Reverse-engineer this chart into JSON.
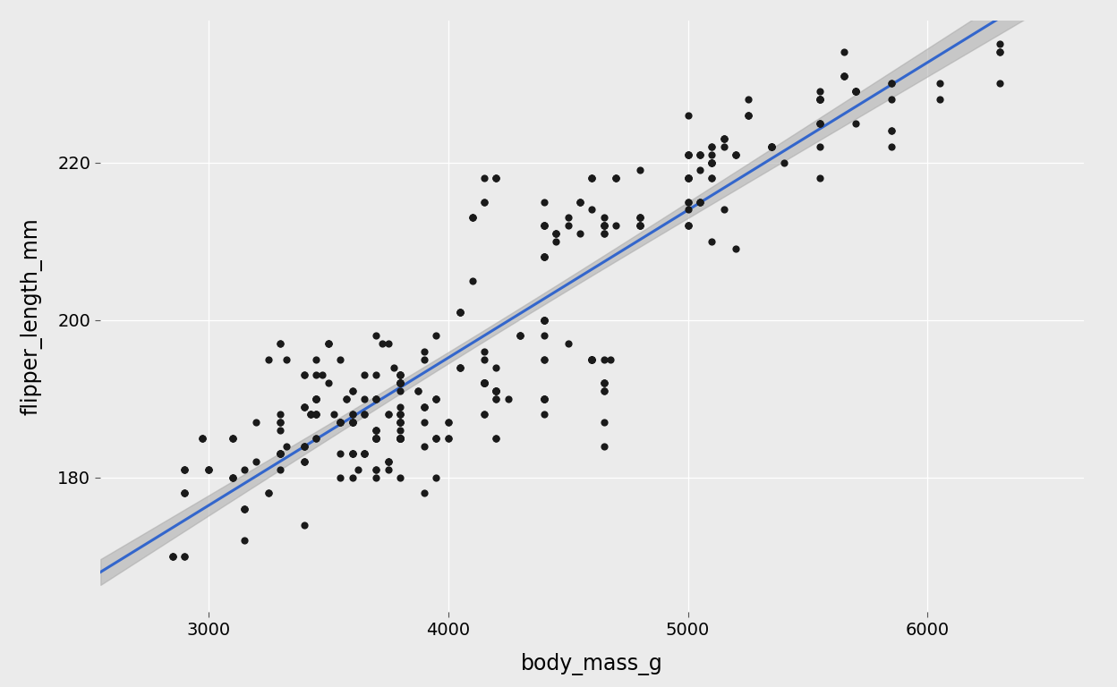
{
  "xlabel": "body_mass_g",
  "ylabel": "flipper_length_mm",
  "xlim": [
    2550,
    6650
  ],
  "ylim": [
    163,
    238
  ],
  "xticks": [
    3000,
    4000,
    5000,
    6000
  ],
  "yticks": [
    180,
    200,
    220
  ],
  "bg_color": "#EBEBEB",
  "grid_color": "#FFFFFF",
  "point_color": "#1a1a1a",
  "line_color": "#3366CC",
  "se_color": "#AAAAAA",
  "point_size": 35,
  "line_width": 2.2,
  "xlabel_fontsize": 17,
  "ylabel_fontsize": 17,
  "tick_fontsize": 14,
  "body_mass": [
    3750,
    3800,
    3250,
    3450,
    3650,
    3625,
    4675,
    3475,
    4250,
    3300,
    3700,
    3200,
    3800,
    4400,
    3700,
    3450,
    4500,
    3325,
    4200,
    3400,
    3600,
    3800,
    3950,
    3800,
    3800,
    3550,
    3200,
    3150,
    3950,
    3250,
    3900,
    3300,
    3900,
    3325,
    4150,
    3950,
    3550,
    3300,
    4650,
    3150,
    3900,
    3100,
    4400,
    3000,
    4600,
    3425,
    2975,
    3450,
    4150,
    3500,
    4300,
    3450,
    4050,
    2900,
    3700,
    3550,
    3800,
    2850,
    3750,
    3150,
    4400,
    3600,
    3900,
    3100,
    4200,
    3400,
    3800,
    3700,
    3800,
    3700,
    4650,
    3400,
    3600,
    3400,
    2900,
    3800,
    3300,
    4150,
    4400,
    4600,
    3800,
    4200,
    3800,
    3600,
    3900,
    4150,
    3950,
    3800,
    4000,
    3875,
    3800,
    3650,
    4000,
    3600,
    4200,
    3800,
    3950,
    4650,
    3450,
    3650,
    3550,
    3650,
    4400,
    3800,
    4200,
    3600,
    3700,
    3300,
    4650,
    3750,
    3700,
    4050,
    3575,
    4050,
    3300,
    3700,
    3450,
    4400,
    3600,
    3400,
    2900,
    3800,
    3300,
    4150,
    3100,
    4400,
    3000,
    4600,
    3425,
    2975,
    3450,
    4150,
    3500,
    4300,
    3450,
    4050,
    2900,
    3700,
    3550,
    3800,
    2850,
    3750,
    3150,
    4400,
    3600,
    3900,
    3100,
    4200,
    3400,
    3800,
    3700,
    3800,
    3700,
    4650,
    3400,
    3600,
    3400,
    2900,
    3800,
    3300,
    4150,
    4400,
    4600,
    3800,
    4200,
    3800,
    3500,
    3900,
    3650,
    3525,
    3725,
    3950,
    3250,
    3750,
    4150,
    3700,
    3800,
    3775,
    3700,
    4050,
    3575,
    4050,
    3300,
    3700,
    3450,
    4400,
    3600,
    3400,
    2900,
    3800,
    3300,
    4150,
    3100,
    4400,
    3000,
    4600,
    3425,
    2975,
    3450,
    4150,
    3500,
    4300,
    3450,
    4050,
    2900,
    3700,
    3550,
    3800,
    2850,
    3750,
    3150,
    4400,
    3600,
    3900,
    3100,
    4200,
    3400,
    3800,
    3700,
    3800,
    3700,
    4650,
    3400,
    3600,
    3400,
    2900,
    3800,
    3300,
    4150,
    4400,
    4600,
    3800,
    4200,
    3800,
    4150,
    3950,
    3800,
    4000,
    3875,
    3800,
    3650,
    4000,
    3600,
    4200,
    3800,
    3950,
    4650,
    3450,
    3650,
    3550,
    3650,
    4400,
    3800,
    4200,
    3600,
    3700,
    3300,
    4650,
    3750,
    5700,
    5400,
    4450,
    5550,
    5000,
    5100,
    4550,
    4800,
    5200,
    4400,
    5150,
    4650,
    5550,
    4650,
    5850,
    4200,
    5850,
    4150,
    6300,
    4800,
    5350,
    5700,
    5000,
    4400,
    5050,
    5000,
    5100,
    4100,
    5650,
    4600,
    5550,
    5250,
    5000,
    4700,
    5100,
    4500,
    5050,
    4450,
    5550,
    5000,
    5100,
    4550,
    4800,
    5200,
    4400,
    5150,
    4650,
    5550,
    4650,
    5850,
    4200,
    5850,
    4150,
    6300,
    4800,
    5350,
    5700,
    5000,
    4400,
    5050,
    5000,
    5100,
    4100,
    5650,
    4600,
    5550,
    5250,
    5000,
    4700,
    5100,
    4500,
    5050,
    4450,
    5550,
    5000,
    5100,
    4550,
    4800,
    5200,
    4400,
    5150,
    4650,
    5550,
    4200,
    5850,
    4800,
    5350,
    5700,
    5000,
    4400,
    5050,
    5000,
    5100,
    4100,
    5650,
    4600,
    5250,
    5000,
    4700,
    5050,
    4450,
    5550,
    5000,
    4550,
    4800,
    5200,
    4400,
    5150,
    4650,
    5550,
    4650,
    5850,
    4150,
    6300,
    4800,
    5350,
    5700,
    5000,
    4400,
    6050,
    6300,
    6050,
    5150,
    5350,
    5700,
    5000,
    4400,
    5050,
    5100,
    4100,
    5650,
    4600,
    5550,
    5250,
    5000,
    4700,
    5100
  ],
  "flipper_length": [
    181,
    186,
    195,
    193,
    190,
    181,
    195,
    193,
    190,
    186,
    180,
    182,
    191,
    198,
    185,
    195,
    197,
    184,
    194,
    174,
    180,
    189,
    185,
    180,
    187,
    183,
    187,
    172,
    180,
    178,
    178,
    188,
    184,
    195,
    196,
    190,
    180,
    181,
    184,
    181,
    195,
    180,
    188,
    181,
    195,
    188,
    185,
    188,
    192,
    197,
    198,
    190,
    194,
    181,
    185,
    187,
    193,
    170,
    182,
    176,
    200,
    187,
    189,
    185,
    191,
    189,
    187,
    186,
    188,
    190,
    192,
    182,
    183,
    184,
    178,
    185,
    183,
    192,
    190,
    195,
    185,
    191,
    185,
    183,
    187,
    188,
    190,
    192,
    185,
    191,
    185,
    183,
    187,
    188,
    190,
    192,
    185,
    191,
    185,
    183,
    187,
    188,
    190,
    192,
    185,
    191,
    185,
    183,
    195,
    188,
    193,
    201,
    190,
    201,
    197,
    181,
    190,
    195,
    187,
    193,
    170,
    185,
    187,
    192,
    180,
    200,
    181,
    195,
    188,
    185,
    188,
    192,
    197,
    198,
    190,
    194,
    181,
    185,
    187,
    193,
    170,
    182,
    176,
    200,
    187,
    189,
    185,
    191,
    189,
    187,
    186,
    188,
    190,
    192,
    182,
    183,
    184,
    178,
    185,
    183,
    192,
    190,
    195,
    185,
    191,
    185,
    192,
    196,
    193,
    188,
    197,
    198,
    178,
    197,
    195,
    198,
    193,
    194,
    185,
    201,
    190,
    201,
    197,
    181,
    190,
    195,
    187,
    193,
    170,
    185,
    187,
    192,
    180,
    200,
    181,
    195,
    188,
    185,
    188,
    192,
    197,
    198,
    190,
    194,
    181,
    185,
    187,
    193,
    170,
    182,
    176,
    200,
    187,
    189,
    185,
    191,
    189,
    187,
    186,
    188,
    190,
    192,
    182,
    183,
    184,
    178,
    185,
    183,
    192,
    190,
    195,
    185,
    191,
    185,
    188,
    190,
    192,
    185,
    191,
    185,
    183,
    187,
    188,
    190,
    192,
    185,
    191,
    185,
    183,
    195,
    188,
    190,
    192,
    185,
    191,
    185,
    183,
    187,
    188,
    225,
    220,
    210,
    218,
    215,
    210,
    211,
    219,
    209,
    215,
    214,
    212,
    222,
    213,
    228,
    218,
    222,
    215,
    235,
    212,
    222,
    229,
    214,
    208,
    219,
    215,
    221,
    205,
    234,
    214,
    229,
    226,
    218,
    218,
    220,
    213,
    215,
    211,
    228,
    212,
    222,
    215,
    213,
    221,
    208,
    223,
    212,
    225,
    211,
    230,
    218,
    224,
    215,
    234,
    212,
    222,
    229,
    221,
    212,
    221,
    218,
    220,
    213,
    231,
    218,
    228,
    226,
    212,
    218,
    218,
    212,
    215,
    211,
    228,
    218,
    222,
    215,
    213,
    221,
    208,
    223,
    212,
    225,
    218,
    224,
    212,
    222,
    229,
    221,
    212,
    221,
    218,
    220,
    213,
    231,
    218,
    228,
    226,
    212,
    215,
    211,
    228,
    218,
    215,
    213,
    221,
    208,
    223,
    212,
    225,
    211,
    230,
    218,
    234,
    212,
    222,
    229,
    221,
    212,
    230,
    230,
    228,
    222,
    222,
    229,
    221,
    212,
    221,
    220,
    213,
    231,
    218,
    228,
    226,
    212,
    218,
    218
  ]
}
